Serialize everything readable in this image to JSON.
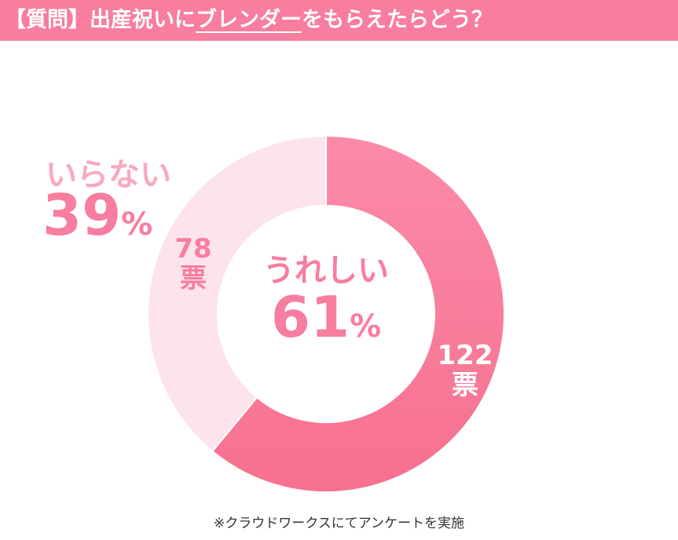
{
  "header": {
    "title_prefix": "【質問】出産祝いに",
    "title_highlight": "ブレンダー",
    "title_suffix": "をもらえたらどう？"
  },
  "chart_data": {
    "type": "pie",
    "categories": [
      "うれしい",
      "いらない"
    ],
    "values": [
      61,
      39
    ],
    "votes": [
      "122",
      "78"
    ],
    "vote_unit": "票",
    "percent_sign": "%",
    "colors": [
      "#f87d9e",
      "#fde4ec"
    ]
  },
  "footnote": "※クラウドワークスにてアンケートを実施"
}
